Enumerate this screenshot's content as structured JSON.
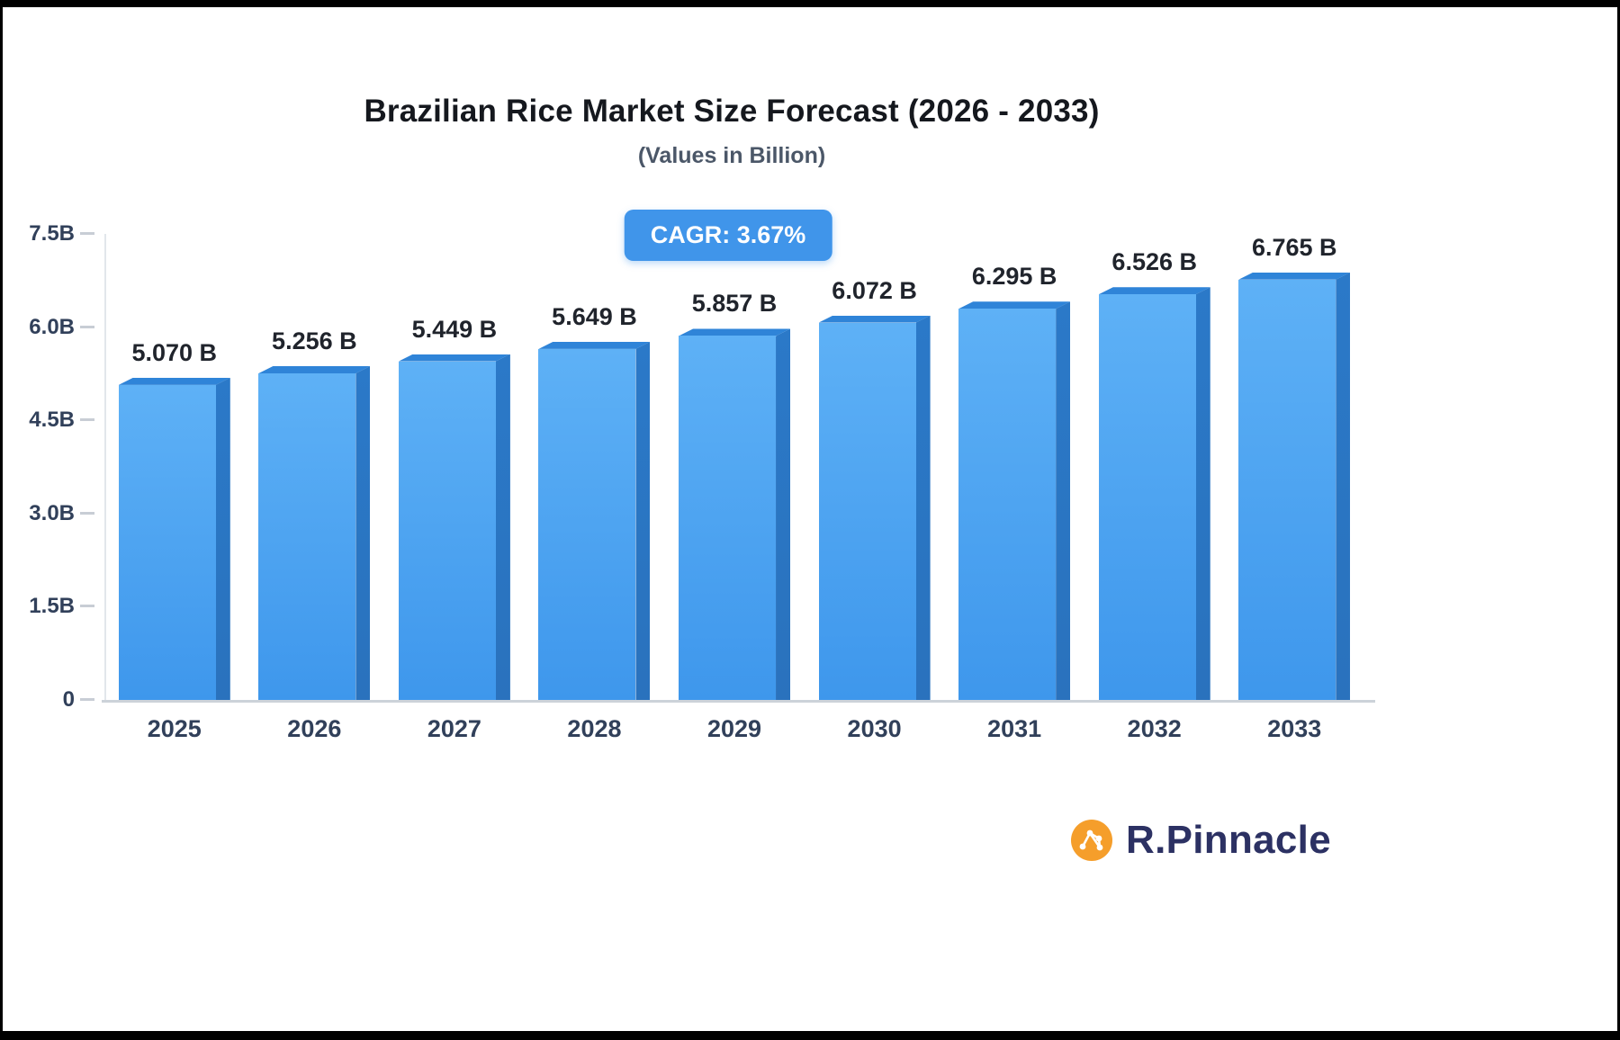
{
  "chart": {
    "title": "Brazilian Rice Market Size Forecast (2026 - 2033)",
    "subtitle": "(Values in Billion)",
    "cagr_label": "CAGR: 3.67%",
    "cagr_percent": 3.67
  },
  "chart_data": {
    "type": "bar",
    "title": "Brazilian Rice Market Size Forecast (2026 - 2033)",
    "subtitle": "(Values in Billion)",
    "categories": [
      "2025",
      "2026",
      "2027",
      "2028",
      "2029",
      "2030",
      "2031",
      "2032",
      "2033"
    ],
    "values": [
      5.07,
      5.256,
      5.449,
      5.649,
      5.857,
      6.072,
      6.295,
      6.526,
      6.765
    ],
    "value_labels": [
      "5.070 B",
      "5.256 B",
      "5.449 B",
      "5.649 B",
      "5.857 B",
      "6.072 B",
      "6.295 B",
      "6.526 B",
      "6.765 B"
    ],
    "xlabel": "",
    "ylabel": "",
    "ylim": [
      0,
      7.5
    ],
    "y_ticks": [
      0,
      1.5,
      3.0,
      4.5,
      6.0,
      7.5
    ],
    "y_tick_labels": [
      "0",
      "1.5B",
      "3.0B",
      "4.5B",
      "6.0B",
      "7.5B"
    ],
    "grid": false,
    "legend": false,
    "annotation": "CAGR: 3.67%"
  },
  "colors": {
    "title": "#15181E",
    "subtitle": "#4B5768",
    "axis_label": "#31405A",
    "badge_bg": "#4095EA",
    "badge_text": "#FFFFFF",
    "bar_front_top": "#5EB1F6",
    "bar_front_bottom": "#3E97EC",
    "bar_side": "#2B79C8",
    "bar_top": "#2F84D8",
    "logo_icon": "#F59E2B",
    "logo_text": "#2C3163"
  },
  "branding": {
    "logo_text": "R.Pinnacle"
  }
}
